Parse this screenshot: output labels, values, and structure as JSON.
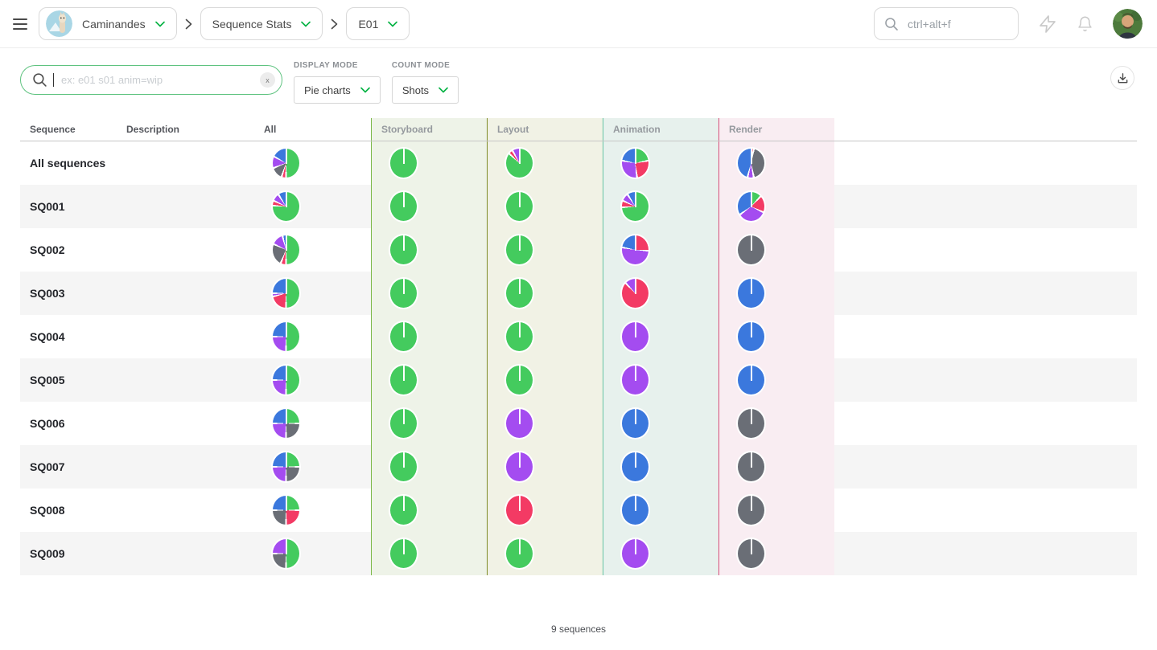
{
  "topbar": {
    "project": {
      "label": "Caminandes"
    },
    "section": {
      "label": "Sequence Stats"
    },
    "episode": {
      "label": "E01"
    },
    "search_placeholder": "ctrl+alt+f"
  },
  "filters": {
    "search_placeholder": "ex: e01 s01 anim=wip",
    "clear_label": "x",
    "display_mode": {
      "label": "DISPLAY MODE",
      "value": "Pie charts"
    },
    "count_mode": {
      "label": "COUNT MODE",
      "value": "Shots"
    }
  },
  "colors": {
    "accent_green": "#00b242",
    "stripe": "#f5f5f5",
    "status": {
      "done": "#44cb5e",
      "wip": "#3b78dd",
      "wfa": "#a44cf0",
      "retake": "#f33a64",
      "todo": "#6a6e76"
    }
  },
  "chart_data": {
    "type": "pie",
    "note": "grid of status-breakdown pies per sequence and task type; values are percent of shots per status",
    "status_legend": [
      "done",
      "wip",
      "wfa",
      "retake",
      "todo"
    ]
  },
  "table": {
    "columns": [
      {
        "key": "sequence",
        "label": "Sequence"
      },
      {
        "key": "description",
        "label": "Description"
      },
      {
        "key": "all",
        "label": "All"
      },
      {
        "key": "storyboard",
        "label": "Storyboard",
        "accent": "#77b643",
        "bg": "#eef3e8"
      },
      {
        "key": "layout",
        "label": "Layout",
        "accent": "#7e8b27",
        "bg": "#f1f2e5"
      },
      {
        "key": "animation",
        "label": "Animation",
        "accent": "#67c3a4",
        "bg": "#e7f1ed"
      },
      {
        "key": "render",
        "label": "Render",
        "accent": "#d7517c",
        "bg": "#f9edf2"
      }
    ],
    "rows": [
      {
        "name": "All sequences",
        "description": "",
        "pies": {
          "all": [
            {
              "s": "done",
              "v": 50
            },
            {
              "s": "retake",
              "v": 5
            },
            {
              "s": "todo",
              "v": 14
            },
            {
              "s": "wfa",
              "v": 14
            },
            {
              "s": "wip",
              "v": 17
            }
          ],
          "storyboard": [
            {
              "s": "done",
              "v": 100
            }
          ],
          "layout": [
            {
              "s": "done",
              "v": 87
            },
            {
              "s": "retake",
              "v": 5
            },
            {
              "s": "wfa",
              "v": 8
            }
          ],
          "animation": [
            {
              "s": "done",
              "v": 22
            },
            {
              "s": "retake",
              "v": 26
            },
            {
              "s": "wfa",
              "v": 30
            },
            {
              "s": "wip",
              "v": 22
            }
          ],
          "render": [
            {
              "s": "retake",
              "v": 3
            },
            {
              "s": "todo",
              "v": 44
            },
            {
              "s": "wfa",
              "v": 7
            },
            {
              "s": "wip",
              "v": 46
            }
          ]
        }
      },
      {
        "name": "SQ001",
        "description": "",
        "pies": {
          "all": [
            {
              "s": "done",
              "v": 76
            },
            {
              "s": "retake",
              "v": 6
            },
            {
              "s": "wfa",
              "v": 9
            },
            {
              "s": "wip",
              "v": 9
            }
          ],
          "storyboard": [
            {
              "s": "done",
              "v": 100
            }
          ],
          "layout": [
            {
              "s": "done",
              "v": 100
            }
          ],
          "animation": [
            {
              "s": "done",
              "v": 74
            },
            {
              "s": "retake",
              "v": 8
            },
            {
              "s": "wfa",
              "v": 9
            },
            {
              "s": "wip",
              "v": 9
            }
          ],
          "render": [
            {
              "s": "done",
              "v": 12
            },
            {
              "s": "retake",
              "v": 20
            },
            {
              "s": "wfa",
              "v": 33
            },
            {
              "s": "wip",
              "v": 35
            }
          ]
        }
      },
      {
        "name": "SQ002",
        "description": "",
        "pies": {
          "all": [
            {
              "s": "done",
              "v": 50
            },
            {
              "s": "retake",
              "v": 6
            },
            {
              "s": "todo",
              "v": 26
            },
            {
              "s": "wfa",
              "v": 14
            },
            {
              "s": "wip",
              "v": 4
            }
          ],
          "storyboard": [
            {
              "s": "done",
              "v": 100
            }
          ],
          "layout": [
            {
              "s": "done",
              "v": 100
            }
          ],
          "animation": [
            {
              "s": "retake",
              "v": 26
            },
            {
              "s": "wfa",
              "v": 52
            },
            {
              "s": "wip",
              "v": 22
            }
          ],
          "render": [
            {
              "s": "todo",
              "v": 100
            }
          ]
        }
      },
      {
        "name": "SQ003",
        "description": "",
        "pies": {
          "all": [
            {
              "s": "done",
              "v": 50
            },
            {
              "s": "retake",
              "v": 21
            },
            {
              "s": "wfa",
              "v": 4
            },
            {
              "s": "wip",
              "v": 25
            }
          ],
          "storyboard": [
            {
              "s": "done",
              "v": 100
            }
          ],
          "layout": [
            {
              "s": "done",
              "v": 100
            }
          ],
          "animation": [
            {
              "s": "retake",
              "v": 88
            },
            {
              "s": "wfa",
              "v": 12
            }
          ],
          "render": [
            {
              "s": "wip",
              "v": 100
            }
          ]
        }
      },
      {
        "name": "SQ004",
        "description": "",
        "pies": {
          "all": [
            {
              "s": "done",
              "v": 50
            },
            {
              "s": "wfa",
              "v": 25
            },
            {
              "s": "wip",
              "v": 25
            }
          ],
          "storyboard": [
            {
              "s": "done",
              "v": 100
            }
          ],
          "layout": [
            {
              "s": "done",
              "v": 100
            }
          ],
          "animation": [
            {
              "s": "wfa",
              "v": 100
            }
          ],
          "render": [
            {
              "s": "wip",
              "v": 100
            }
          ]
        }
      },
      {
        "name": "SQ005",
        "description": "",
        "pies": {
          "all": [
            {
              "s": "done",
              "v": 50
            },
            {
              "s": "wfa",
              "v": 25
            },
            {
              "s": "wip",
              "v": 25
            }
          ],
          "storyboard": [
            {
              "s": "done",
              "v": 100
            }
          ],
          "layout": [
            {
              "s": "done",
              "v": 100
            }
          ],
          "animation": [
            {
              "s": "wfa",
              "v": 100
            }
          ],
          "render": [
            {
              "s": "wip",
              "v": 100
            }
          ]
        }
      },
      {
        "name": "SQ006",
        "description": "",
        "pies": {
          "all": [
            {
              "s": "done",
              "v": 25
            },
            {
              "s": "todo",
              "v": 25
            },
            {
              "s": "wfa",
              "v": 25
            },
            {
              "s": "wip",
              "v": 25
            }
          ],
          "storyboard": [
            {
              "s": "done",
              "v": 100
            }
          ],
          "layout": [
            {
              "s": "wfa",
              "v": 100
            }
          ],
          "animation": [
            {
              "s": "wip",
              "v": 100
            }
          ],
          "render": [
            {
              "s": "todo",
              "v": 100
            }
          ]
        }
      },
      {
        "name": "SQ007",
        "description": "",
        "pies": {
          "all": [
            {
              "s": "done",
              "v": 25
            },
            {
              "s": "todo",
              "v": 25
            },
            {
              "s": "wfa",
              "v": 25
            },
            {
              "s": "wip",
              "v": 25
            }
          ],
          "storyboard": [
            {
              "s": "done",
              "v": 100
            }
          ],
          "layout": [
            {
              "s": "wfa",
              "v": 100
            }
          ],
          "animation": [
            {
              "s": "wip",
              "v": 100
            }
          ],
          "render": [
            {
              "s": "todo",
              "v": 100
            }
          ]
        }
      },
      {
        "name": "SQ008",
        "description": "",
        "pies": {
          "all": [
            {
              "s": "done",
              "v": 25
            },
            {
              "s": "retake",
              "v": 25
            },
            {
              "s": "todo",
              "v": 25
            },
            {
              "s": "wip",
              "v": 25
            }
          ],
          "storyboard": [
            {
              "s": "done",
              "v": 100
            }
          ],
          "layout": [
            {
              "s": "retake",
              "v": 100
            }
          ],
          "animation": [
            {
              "s": "wip",
              "v": 100
            }
          ],
          "render": [
            {
              "s": "todo",
              "v": 100
            }
          ]
        }
      },
      {
        "name": "SQ009",
        "description": "",
        "pies": {
          "all": [
            {
              "s": "done",
              "v": 50
            },
            {
              "s": "todo",
              "v": 25
            },
            {
              "s": "wfa",
              "v": 25
            }
          ],
          "storyboard": [
            {
              "s": "done",
              "v": 100
            }
          ],
          "layout": [
            {
              "s": "done",
              "v": 100
            }
          ],
          "animation": [
            {
              "s": "wfa",
              "v": 100
            }
          ],
          "render": [
            {
              "s": "todo",
              "v": 100
            }
          ]
        }
      }
    ]
  },
  "footer": {
    "count_label": "9 sequences"
  }
}
